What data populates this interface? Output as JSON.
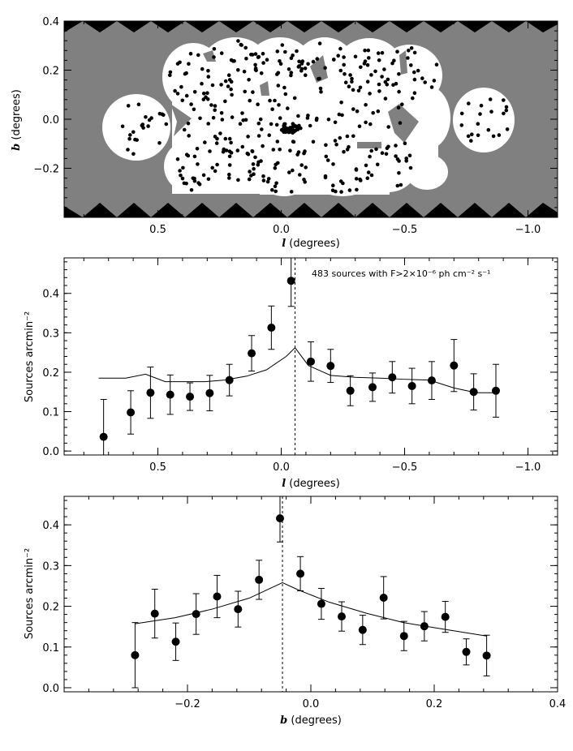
{
  "chart_data": [
    {
      "type": "map",
      "xlabel_var": "l",
      "xlabel_unit": "(degrees)",
      "ylabel_var": "b",
      "ylabel_unit": "(degrees)",
      "xlim": [
        0.88,
        -1.12
      ],
      "ylim": [
        -0.4,
        0.4
      ],
      "xticks": [
        0.5,
        0.0,
        -0.5,
        -1.0
      ],
      "xtick_labels": [
        "0.5",
        "0.0",
        "−0.5",
        "−1.0"
      ],
      "yticks": [
        0.4,
        0.2,
        0.0,
        -0.2
      ],
      "ytick_labels": [
        "0.4",
        "0.2",
        "0.0",
        "−0.2"
      ],
      "colors": {
        "background": "#000000",
        "coverage": "#808080",
        "observed": "#ffffff",
        "sources": "#000000"
      }
    },
    {
      "type": "scatter",
      "annotation": "483 sources with F>2×10⁻⁶ ph cm⁻² s⁻¹",
      "xlabel_var": "l",
      "xlabel_unit": "(degrees)",
      "ylabel": "Sources arcmin⁻²",
      "xlim": [
        0.88,
        -1.12
      ],
      "ylim": [
        -0.01,
        0.49
      ],
      "xticks": [
        0.5,
        0.0,
        -0.5,
        -1.0
      ],
      "xtick_labels": [
        "0.5",
        "0.0",
        "−0.5",
        "−1.0"
      ],
      "yticks": [
        0.0,
        0.1,
        0.2,
        0.3,
        0.4
      ],
      "ytick_labels": [
        "0.0",
        "0.1",
        "0.2",
        "0.3",
        "0.4"
      ],
      "vline_x": -0.056,
      "points": [
        {
          "x": 0.72,
          "y": 0.036,
          "err": 0.095
        },
        {
          "x": 0.61,
          "y": 0.098,
          "err": 0.055
        },
        {
          "x": 0.53,
          "y": 0.148,
          "err": 0.065
        },
        {
          "x": 0.45,
          "y": 0.143,
          "err": 0.05
        },
        {
          "x": 0.37,
          "y": 0.138,
          "err": 0.035
        },
        {
          "x": 0.29,
          "y": 0.147,
          "err": 0.045
        },
        {
          "x": 0.21,
          "y": 0.18,
          "err": 0.04
        },
        {
          "x": 0.12,
          "y": 0.248,
          "err": 0.045
        },
        {
          "x": 0.04,
          "y": 0.313,
          "err": 0.055
        },
        {
          "x": -0.04,
          "y": 0.432,
          "err": 0.065
        },
        {
          "x": -0.12,
          "y": 0.227,
          "err": 0.05
        },
        {
          "x": -0.2,
          "y": 0.216,
          "err": 0.042
        },
        {
          "x": -0.28,
          "y": 0.153,
          "err": 0.038
        },
        {
          "x": -0.37,
          "y": 0.162,
          "err": 0.036
        },
        {
          "x": -0.45,
          "y": 0.187,
          "err": 0.04
        },
        {
          "x": -0.53,
          "y": 0.165,
          "err": 0.045
        },
        {
          "x": -0.61,
          "y": 0.179,
          "err": 0.048
        },
        {
          "x": -0.7,
          "y": 0.217,
          "err": 0.066
        },
        {
          "x": -0.78,
          "y": 0.15,
          "err": 0.046
        },
        {
          "x": -0.87,
          "y": 0.153,
          "err": 0.067
        }
      ],
      "model_line": {
        "x": [
          0.74,
          0.63,
          0.55,
          0.47,
          0.39,
          0.31,
          0.23,
          0.14,
          0.06,
          -0.02,
          -0.056,
          -0.11,
          -0.2,
          -0.3,
          -0.4,
          -0.5,
          -0.6,
          -0.7,
          -0.79,
          -0.88
        ],
        "y": [
          0.185,
          0.185,
          0.195,
          0.176,
          0.176,
          0.176,
          0.18,
          0.19,
          0.206,
          0.24,
          0.262,
          0.217,
          0.192,
          0.187,
          0.185,
          0.182,
          0.18,
          0.16,
          0.148,
          0.148
        ]
      }
    },
    {
      "type": "scatter",
      "xlabel_var": "b",
      "xlabel_unit": "(degrees)",
      "ylabel": "Sources arcmin⁻²",
      "xlim": [
        -0.4,
        0.4
      ],
      "ylim": [
        -0.01,
        0.47
      ],
      "xticks": [
        -0.2,
        0.0,
        0.2,
        0.4
      ],
      "xtick_labels": [
        "−0.2",
        "0.0",
        "0.2",
        "0.4"
      ],
      "yticks": [
        0.0,
        0.1,
        0.2,
        0.3,
        0.4
      ],
      "ytick_labels": [
        "0.0",
        "0.1",
        "0.2",
        "0.3",
        "0.4"
      ],
      "vline_x": -0.046,
      "points": [
        {
          "x": -0.285,
          "y": 0.08,
          "err": 0.08
        },
        {
          "x": -0.253,
          "y": 0.182,
          "err": 0.06
        },
        {
          "x": -0.219,
          "y": 0.113,
          "err": 0.046
        },
        {
          "x": -0.186,
          "y": 0.181,
          "err": 0.05
        },
        {
          "x": -0.152,
          "y": 0.224,
          "err": 0.052
        },
        {
          "x": -0.118,
          "y": 0.193,
          "err": 0.044
        },
        {
          "x": -0.084,
          "y": 0.265,
          "err": 0.048
        },
        {
          "x": -0.05,
          "y": 0.416,
          "err": 0.058
        },
        {
          "x": -0.017,
          "y": 0.28,
          "err": 0.042
        },
        {
          "x": 0.017,
          "y": 0.206,
          "err": 0.038
        },
        {
          "x": 0.05,
          "y": 0.175,
          "err": 0.036
        },
        {
          "x": 0.084,
          "y": 0.142,
          "err": 0.036
        },
        {
          "x": 0.118,
          "y": 0.221,
          "err": 0.052
        },
        {
          "x": 0.151,
          "y": 0.127,
          "err": 0.036
        },
        {
          "x": 0.184,
          "y": 0.151,
          "err": 0.036
        },
        {
          "x": 0.218,
          "y": 0.174,
          "err": 0.038
        },
        {
          "x": 0.252,
          "y": 0.088,
          "err": 0.032
        },
        {
          "x": 0.285,
          "y": 0.079,
          "err": 0.05
        }
      ],
      "model_line": {
        "x": [
          -0.285,
          -0.22,
          -0.16,
          -0.1,
          -0.046,
          -0.02,
          0.03,
          0.09,
          0.15,
          0.21,
          0.285
        ],
        "y": [
          0.157,
          0.172,
          0.193,
          0.22,
          0.258,
          0.24,
          0.21,
          0.183,
          0.16,
          0.145,
          0.127
        ]
      }
    }
  ]
}
